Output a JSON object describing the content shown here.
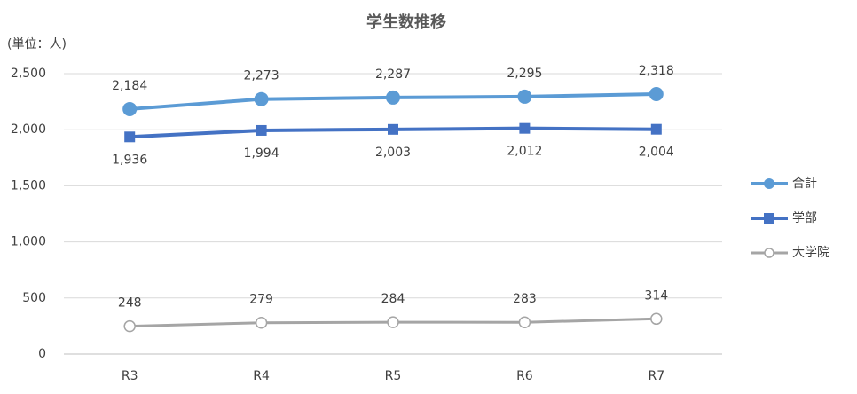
{
  "chart_data": {
    "type": "line",
    "title": "学生数推移",
    "unit_label": "(単位：人)",
    "categories": [
      "R3",
      "R4",
      "R5",
      "R6",
      "R7"
    ],
    "series": [
      {
        "name": "合計",
        "color": "#5b9bd5",
        "marker": "circle",
        "label_position": "above",
        "values": [
          2184,
          2273,
          2287,
          2295,
          2318
        ],
        "value_labels": [
          "2,184",
          "2,273",
          "2,287",
          "2,295",
          "2,318"
        ]
      },
      {
        "name": "学部",
        "color": "#4472c4",
        "marker": "square",
        "label_position": "below",
        "values": [
          1936,
          1994,
          2003,
          2012,
          2004
        ],
        "value_labels": [
          "1,936",
          "1,994",
          "2,003",
          "2,012",
          "2,004"
        ]
      },
      {
        "name": "大学院",
        "color": "#a5a5a5",
        "marker": "open-circle",
        "label_position": "above",
        "values": [
          248,
          279,
          284,
          283,
          314
        ]
      }
    ],
    "ylim": [
      0,
      2500
    ],
    "yticks": [
      0,
      500,
      {
        "value": 1000,
        "label": "1,000"
      },
      {
        "value": 1500,
        "label": "1,500"
      },
      {
        "value": 2000,
        "label": "2,000"
      },
      {
        "value": 2500,
        "label": "2,500"
      }
    ],
    "grid": true,
    "legend": "right"
  }
}
